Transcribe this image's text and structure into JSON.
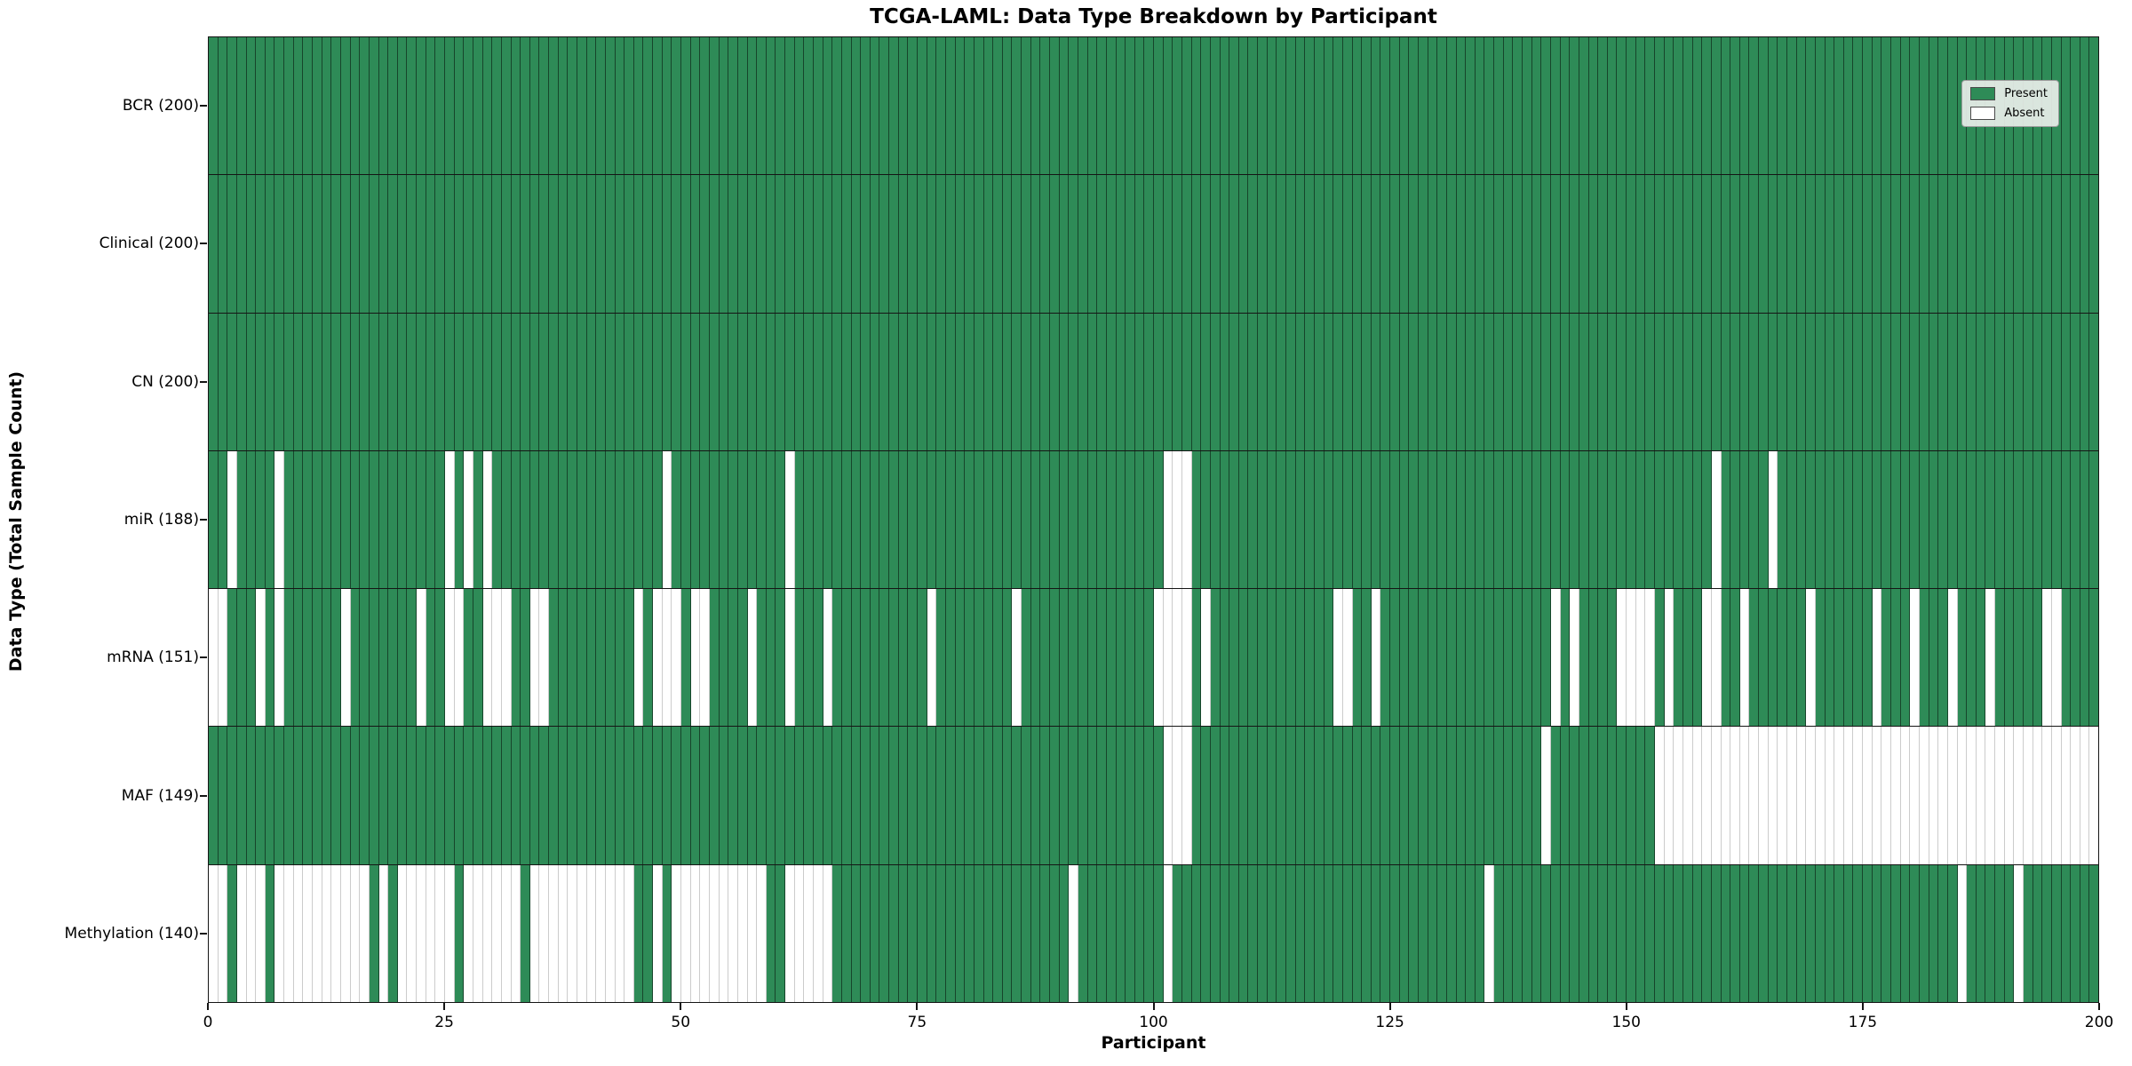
{
  "title": "TCGA-LAML: Data Type Breakdown by Participant",
  "x_axis_title": "Participant",
  "y_axis_title": "Data Type (Total Sample Count)",
  "legend": {
    "present_label": "Present",
    "absent_label": "Absent"
  },
  "colors": {
    "present": "#2E8B57",
    "absent": "#FFFFFF",
    "axis_line": "#151515",
    "legend_background": "#e9eee9"
  },
  "chart_data": {
    "type": "heatmap",
    "title": "TCGA-LAML: Data Type Breakdown by Participant",
    "xlabel": "Participant",
    "ylabel": "Data Type (Total Sample Count)",
    "x_range": [
      0,
      200
    ],
    "x_ticks": [
      0,
      25,
      50,
      75,
      100,
      125,
      150,
      175,
      200
    ],
    "n_participants": 200,
    "legend_entries": [
      "Present",
      "Absent"
    ],
    "rows": [
      {
        "label": "BCR (200)",
        "name": "BCR",
        "total_present": 200,
        "absent_participants": []
      },
      {
        "label": "Clinical (200)",
        "name": "Clinical",
        "total_present": 200,
        "absent_participants": []
      },
      {
        "label": "CN (200)",
        "name": "CN",
        "total_present": 200,
        "absent_participants": []
      },
      {
        "label": "miR (188)",
        "name": "miR",
        "total_present": 188,
        "absent_participants": [
          2,
          7,
          25,
          27,
          29,
          48,
          61,
          101,
          102,
          103,
          159,
          165
        ]
      },
      {
        "label": "mRNA (151)",
        "name": "mRNA",
        "total_present": 151,
        "absent_participants": [
          0,
          1,
          5,
          7,
          14,
          22,
          25,
          26,
          29,
          30,
          31,
          34,
          35,
          45,
          47,
          48,
          49,
          51,
          52,
          57,
          61,
          65,
          76,
          85,
          100,
          101,
          102,
          103,
          105,
          119,
          120,
          123,
          142,
          144,
          149,
          150,
          151,
          152,
          154,
          158,
          159,
          162,
          169,
          176,
          180,
          184,
          188,
          194,
          195
        ]
      },
      {
        "label": "MAF (149)",
        "name": "MAF",
        "total_present": 149,
        "absent_participants": [
          101,
          102,
          103,
          141,
          153,
          154,
          155,
          156,
          157,
          158,
          159,
          160,
          161,
          162,
          163,
          164,
          165,
          166,
          167,
          168,
          169,
          170,
          171,
          172,
          173,
          174,
          175,
          176,
          177,
          178,
          179,
          180,
          181,
          182,
          183,
          184,
          185,
          186,
          187,
          188,
          189,
          190,
          191,
          192,
          193,
          194,
          195,
          196,
          197,
          198,
          199
        ]
      },
      {
        "label": "Methylation (140)",
        "name": "Methylation",
        "total_present": 140,
        "absent_participants": [
          0,
          1,
          3,
          4,
          5,
          7,
          8,
          9,
          10,
          11,
          12,
          13,
          14,
          15,
          16,
          18,
          20,
          21,
          22,
          23,
          24,
          25,
          27,
          28,
          29,
          30,
          31,
          32,
          34,
          35,
          36,
          37,
          38,
          39,
          40,
          41,
          42,
          43,
          44,
          47,
          49,
          50,
          51,
          52,
          53,
          54,
          55,
          56,
          57,
          58,
          61,
          62,
          63,
          64,
          65,
          91,
          101,
          135,
          185,
          191
        ]
      }
    ]
  }
}
